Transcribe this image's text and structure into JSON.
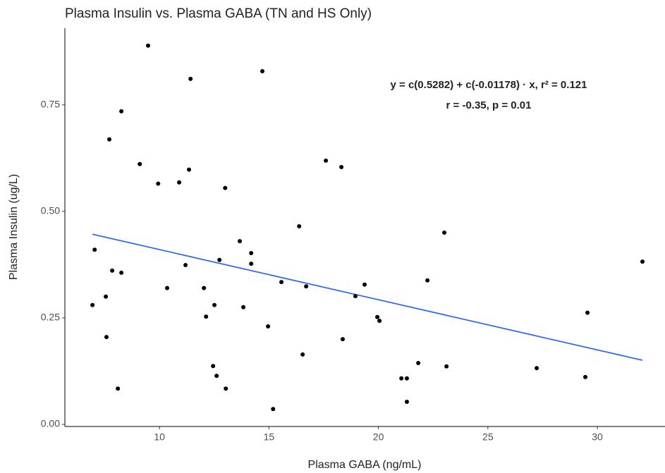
{
  "chart_data": {
    "type": "scatter",
    "title": "Plasma Insulin vs. Plasma GABA (TN and HS Only)",
    "x_label": "Plasma GABA (ng/mL)",
    "y_label": "Plasma Insulin (ug/L)",
    "annotations": [
      "y = c(0.5282) + c(-0.01178) · x,  r² = 0.121",
      "r = -0.35,  p = 0.01"
    ],
    "xlim": [
      5.68,
      33.09
    ],
    "ylim": [
      -0.005,
      0.93
    ],
    "xticks": [
      10,
      15,
      20,
      25,
      30
    ],
    "yticks": [
      {
        "value": 0,
        "label": "0.00"
      },
      {
        "value": 0.25,
        "label": "0.25"
      },
      {
        "value": 0.5,
        "label": "0.50"
      },
      {
        "value": 0.75,
        "label": "0.75"
      }
    ],
    "grid": false,
    "series": [
      {
        "name": "points",
        "color": "#000000",
        "x": [
          6.94,
          7.04,
          7.55,
          7.58,
          7.71,
          7.84,
          8.1,
          8.26,
          8.26,
          9.1,
          9.48,
          9.94,
          10.35,
          10.9,
          11.19,
          11.35,
          11.42,
          12.03,
          12.13,
          12.45,
          12.51,
          12.61,
          12.74,
          13.0,
          13.03,
          13.67,
          13.83,
          14.19,
          14.19,
          14.7,
          14.96,
          15.19,
          15.57,
          16.38,
          16.54,
          16.7,
          17.6,
          18.31,
          18.37,
          18.95,
          19.37,
          19.95,
          20.05,
          21.05,
          21.3,
          21.3,
          21.82,
          22.24,
          23.01,
          23.11,
          27.23,
          29.45,
          29.55,
          32.06
        ],
        "values": [
          0.28,
          0.41,
          0.3,
          0.205,
          0.669,
          0.361,
          0.084,
          0.735,
          0.356,
          0.611,
          0.889,
          0.565,
          0.32,
          0.568,
          0.374,
          0.598,
          0.811,
          0.32,
          0.253,
          0.137,
          0.28,
          0.114,
          0.386,
          0.555,
          0.084,
          0.43,
          0.275,
          0.402,
          0.377,
          0.829,
          0.23,
          0.036,
          0.334,
          0.465,
          0.164,
          0.324,
          0.619,
          0.604,
          0.2,
          0.301,
          0.328,
          0.252,
          0.243,
          0.108,
          0.108,
          0.053,
          0.144,
          0.338,
          0.45,
          0.136,
          0.132,
          0.111,
          0.262,
          0.382
        ]
      },
      {
        "name": "fit",
        "color": "#3366ff",
        "x": [
          6.94,
          32.06
        ],
        "values": [
          0.4464,
          0.1505
        ]
      }
    ]
  }
}
